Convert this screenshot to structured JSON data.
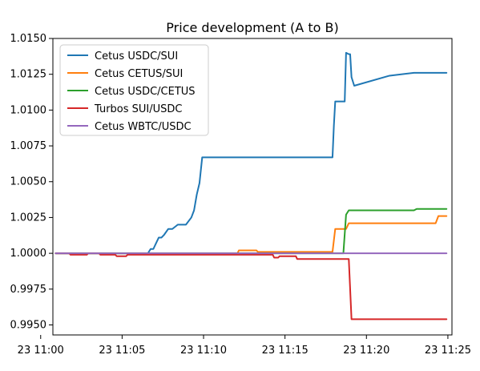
{
  "chart_data": {
    "type": "line",
    "title": "Price development (A to B)",
    "xlabel": "",
    "ylabel": "",
    "x_axis": {
      "type": "time",
      "range": [
        "23 11:00:45",
        "23 11:25:15"
      ],
      "ticks": [
        {
          "value": "23 11:00:00",
          "label": "23 11:00"
        },
        {
          "value": "23 11:05:00",
          "label": "23 11:05"
        },
        {
          "value": "23 11:10:00",
          "label": "23 11:10"
        },
        {
          "value": "23 11:15:00",
          "label": "23 11:15"
        },
        {
          "value": "23 11:20:00",
          "label": "23 11:20"
        },
        {
          "value": "23 11:25:00",
          "label": "23 11:25"
        }
      ]
    },
    "ylim": [
      0.9943,
      1.015
    ],
    "y_ticks": [
      {
        "value": 0.995,
        "label": "0.9950"
      },
      {
        "value": 0.9975,
        "label": "0.9975"
      },
      {
        "value": 1.0,
        "label": "1.0000"
      },
      {
        "value": 1.0025,
        "label": "1.0025"
      },
      {
        "value": 1.005,
        "label": "1.0050"
      },
      {
        "value": 1.0075,
        "label": "1.0075"
      },
      {
        "value": 1.01,
        "label": "1.0100"
      },
      {
        "value": 1.0125,
        "label": "1.0125"
      },
      {
        "value": 1.015,
        "label": "1.0150"
      }
    ],
    "grid": false,
    "legend_position": "top-left",
    "series": [
      {
        "name": "Cetus USDC/SUI",
        "color": "#1f77b4",
        "x": [
          "23 11:00:55",
          "23 11:06:35",
          "23 11:06:45",
          "23 11:06:55",
          "23 11:07:05",
          "23 11:07:15",
          "23 11:07:25",
          "23 11:07:35",
          "23 11:07:50",
          "23 11:08:05",
          "23 11:08:25",
          "23 11:08:55",
          "23 11:09:15",
          "23 11:09:25",
          "23 11:09:35",
          "23 11:09:45",
          "23 11:09:55",
          "23 11:10:00",
          "23 11:17:05",
          "23 11:17:55",
          "23 11:18:00",
          "23 11:18:05",
          "23 11:18:40",
          "23 11:18:45",
          "23 11:18:55",
          "23 11:19:00",
          "23 11:19:05",
          "23 11:19:15",
          "23 11:21:25",
          "23 11:22:55",
          "23 11:24:55"
        ],
        "y": [
          1.0,
          1.0,
          1.0003,
          1.0003,
          1.0007,
          1.0011,
          1.0011,
          1.0013,
          1.0017,
          1.0017,
          1.002,
          1.002,
          1.0025,
          1.003,
          1.0041,
          1.0049,
          1.0067,
          1.0067,
          1.0067,
          1.0067,
          1.0089,
          1.0106,
          1.0106,
          1.014,
          1.0139,
          1.0139,
          1.0123,
          1.0117,
          1.0124,
          1.0126,
          1.0126
        ]
      },
      {
        "name": "Cetus CETUS/SUI",
        "color": "#ff7f0e",
        "x": [
          "23 11:00:55",
          "23 11:12:05",
          "23 11:12:10",
          "23 11:13:15",
          "23 11:13:20",
          "23 11:17:55",
          "23 11:18:05",
          "23 11:18:45",
          "23 11:18:55",
          "23 11:24:15",
          "23 11:24:25",
          "23 11:24:55"
        ],
        "y": [
          1.0,
          1.0,
          1.0002,
          1.0002,
          1.0001,
          1.0001,
          1.0017,
          1.0017,
          1.0021,
          1.0021,
          1.0026,
          1.0026
        ],
        "tail_value": 1.0026
      },
      {
        "name": "Cetus USDC/CETUS",
        "color": "#2ca02c",
        "x": [
          "23 11:00:55",
          "23 11:18:35",
          "23 11:18:45",
          "23 11:18:55",
          "23 11:22:55",
          "23 11:23:05",
          "23 11:24:55"
        ],
        "y": [
          1.0,
          1.0,
          1.0027,
          1.003,
          1.003,
          1.0031,
          1.0031
        ],
        "tail_value": 1.0031
      },
      {
        "name": "Turbos SUI/USDC",
        "color": "#d62728",
        "x": [
          "23 11:00:55",
          "23 11:01:45",
          "23 11:01:50",
          "23 11:02:50",
          "23 11:02:55",
          "23 11:03:35",
          "23 11:03:40",
          "23 11:04:35",
          "23 11:04:40",
          "23 11:05:15",
          "23 11:05:20",
          "23 11:14:15",
          "23 11:14:20",
          "23 11:14:35",
          "23 11:14:40",
          "23 11:15:40",
          "23 11:15:45",
          "23 11:18:55",
          "23 11:19:05",
          "23 11:24:55"
        ],
        "y": [
          1.0,
          1.0,
          0.9999,
          0.9999,
          1.0,
          1.0,
          0.9999,
          0.9999,
          0.9998,
          0.9998,
          0.9999,
          0.9999,
          0.9997,
          0.9997,
          0.9998,
          0.9998,
          0.9996,
          0.9996,
          0.9954,
          0.9954
        ],
        "tail_value": 0.9954
      },
      {
        "name": "Cetus WBTC/USDC",
        "color": "#9467bd",
        "x": [
          "23 11:00:55",
          "23 11:24:55"
        ],
        "y": [
          1.0,
          1.0
        ],
        "tail_value": 1.0
      }
    ]
  }
}
